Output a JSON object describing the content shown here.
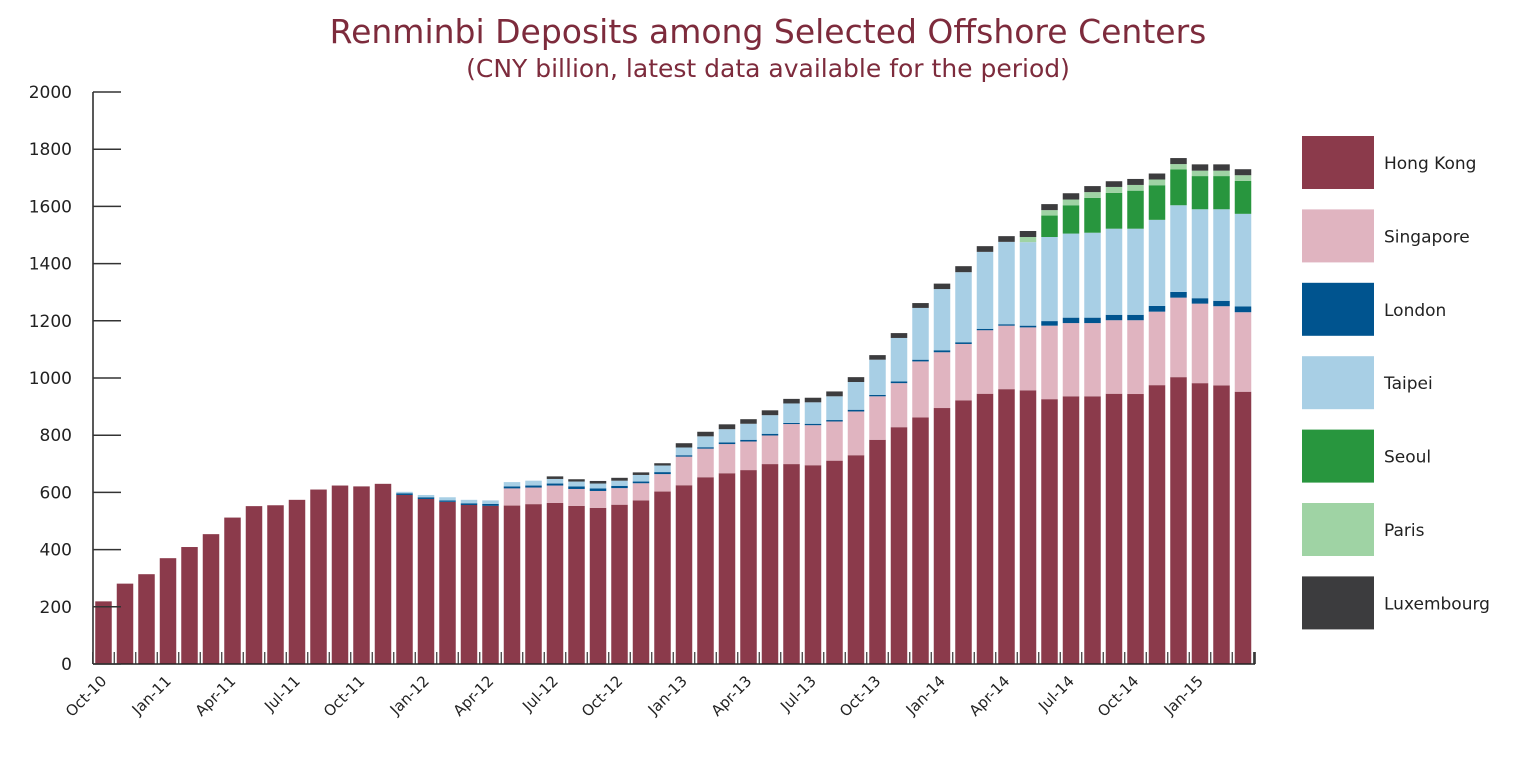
{
  "chart_data": {
    "type": "bar",
    "stacked": true,
    "title": "Renminbi Deposits among Selected Offshore Centers",
    "subtitle": "(CNY billion, latest data available for the period)",
    "xlabel": "",
    "ylabel": "",
    "ylim": [
      0,
      2000
    ],
    "yticks": [
      0,
      200,
      400,
      600,
      800,
      1000,
      1200,
      1400,
      1600,
      1800,
      2000
    ],
    "grid": false,
    "legend_position": "right",
    "categories": [
      "Oct-10",
      "Nov-10",
      "Dec-10",
      "Jan-11",
      "Feb-11",
      "Mar-11",
      "Apr-11",
      "May-11",
      "Jun-11",
      "Jul-11",
      "Aug-11",
      "Sep-11",
      "Oct-11",
      "Nov-11",
      "Dec-11",
      "Jan-12",
      "Feb-12",
      "Mar-12",
      "Apr-12",
      "May-12",
      "Jun-12",
      "Jul-12",
      "Aug-12",
      "Sep-12",
      "Oct-12",
      "Nov-12",
      "Dec-12",
      "Jan-13",
      "Feb-13",
      "Mar-13",
      "Apr-13",
      "May-13",
      "Jun-13",
      "Jul-13",
      "Aug-13",
      "Sep-13",
      "Oct-13",
      "Nov-13",
      "Dec-13",
      "Jan-14",
      "Feb-14",
      "Mar-14",
      "Apr-14",
      "May-14",
      "Jun-14",
      "Jul-14",
      "Aug-14",
      "Sep-14",
      "Oct-14",
      "Nov-14",
      "Dec-14",
      "Jan-15",
      "Feb-15",
      "Mar-15"
    ],
    "xtick_labels": [
      "Oct-10",
      "Jan-11",
      "Apr-11",
      "Jul-11",
      "Oct-11",
      "Jan-12",
      "Apr-12",
      "Jul-12",
      "Oct-12",
      "Jan-13",
      "Apr-13",
      "Jul-13",
      "Oct-13",
      "Jan-14",
      "Apr-14",
      "Jul-14",
      "Oct-14",
      "Jan-15"
    ],
    "series": [
      {
        "name": "Hong Kong",
        "color": "#8b3a4b",
        "values": [
          219,
          281,
          314,
          370,
          409,
          454,
          512,
          552,
          555,
          574,
          610,
          624,
          621,
          630,
          591,
          577,
          567,
          556,
          553,
          554,
          559,
          563,
          553,
          546,
          557,
          572,
          603,
          625,
          653,
          667,
          678,
          699,
          699,
          695,
          711,
          730,
          784,
          828,
          862,
          895,
          922,
          945,
          961,
          957,
          926,
          936,
          936,
          945,
          944,
          975,
          1003,
          982,
          974,
          952
        ]
      },
      {
        "name": "Singapore",
        "color": "#e0b4c0",
        "values": [
          0,
          0,
          0,
          0,
          0,
          0,
          0,
          0,
          0,
          0,
          0,
          0,
          0,
          0,
          0,
          0,
          0,
          0,
          0,
          60,
          58,
          61,
          59,
          59,
          58,
          60,
          61,
          100,
          100,
          102,
          100,
          100,
          140,
          140,
          137,
          153,
          152,
          154,
          196,
          195,
          197,
          222,
          222,
          220,
          257,
          256,
          256,
          257,
          258,
          257,
          278,
          278,
          277,
          278
        ]
      },
      {
        "name": "London",
        "color": "#00548f",
        "values": [
          0,
          0,
          0,
          0,
          0,
          0,
          0,
          0,
          0,
          0,
          0,
          0,
          0,
          0,
          6,
          6,
          5,
          6,
          7,
          7,
          7,
          7,
          9,
          9,
          8,
          6,
          7,
          5,
          5,
          6,
          6,
          6,
          4,
          5,
          5,
          6,
          5,
          6,
          6,
          7,
          6,
          5,
          5,
          6,
          16,
          19,
          19,
          19,
          19,
          20,
          20,
          19,
          19,
          20
        ]
      },
      {
        "name": "Taipei",
        "color": "#a8cfe5",
        "values": [
          0,
          0,
          0,
          0,
          0,
          0,
          0,
          0,
          0,
          0,
          0,
          0,
          0,
          0,
          5,
          8,
          11,
          12,
          12,
          15,
          17,
          16,
          17,
          17,
          18,
          23,
          23,
          27,
          38,
          46,
          56,
          65,
          68,
          75,
          83,
          97,
          123,
          152,
          181,
          214,
          245,
          269,
          288,
          292,
          294,
          294,
          297,
          301,
          301,
          301,
          303,
          311,
          320,
          324
        ]
      },
      {
        "name": "Seoul",
        "color": "#28963e",
        "values": [
          0,
          0,
          0,
          0,
          0,
          0,
          0,
          0,
          0,
          0,
          0,
          0,
          0,
          0,
          0,
          0,
          0,
          0,
          0,
          0,
          0,
          0,
          0,
          0,
          0,
          0,
          0,
          0,
          0,
          0,
          0,
          0,
          0,
          0,
          0,
          0,
          0,
          0,
          0,
          0,
          0,
          0,
          0,
          0,
          75,
          99,
          122,
          125,
          133,
          121,
          125,
          116,
          116,
          115
        ]
      },
      {
        "name": "Paris",
        "color": "#9fd3a4",
        "values": [
          0,
          0,
          0,
          0,
          0,
          0,
          0,
          0,
          0,
          0,
          0,
          0,
          0,
          0,
          0,
          0,
          0,
          0,
          0,
          0,
          0,
          0,
          0,
          0,
          0,
          0,
          0,
          0,
          0,
          0,
          0,
          0,
          0,
          0,
          0,
          0,
          0,
          0,
          0,
          0,
          0,
          0,
          0,
          18,
          19,
          20,
          20,
          21,
          20,
          20,
          19,
          19,
          19,
          20
        ]
      },
      {
        "name": "Luxembourg",
        "color": "#3c3c3e",
        "values": [
          0,
          0,
          0,
          0,
          0,
          0,
          0,
          0,
          0,
          0,
          0,
          0,
          0,
          0,
          0,
          0,
          0,
          0,
          0,
          0,
          0,
          9,
          8,
          9,
          10,
          9,
          8,
          15,
          16,
          17,
          16,
          17,
          16,
          16,
          17,
          17,
          16,
          17,
          17,
          19,
          21,
          20,
          20,
          21,
          21,
          22,
          21,
          20,
          21,
          21,
          21,
          22,
          22,
          21
        ]
      }
    ]
  },
  "colors": {
    "title": "#7d2b3c",
    "axis": "#222222"
  }
}
